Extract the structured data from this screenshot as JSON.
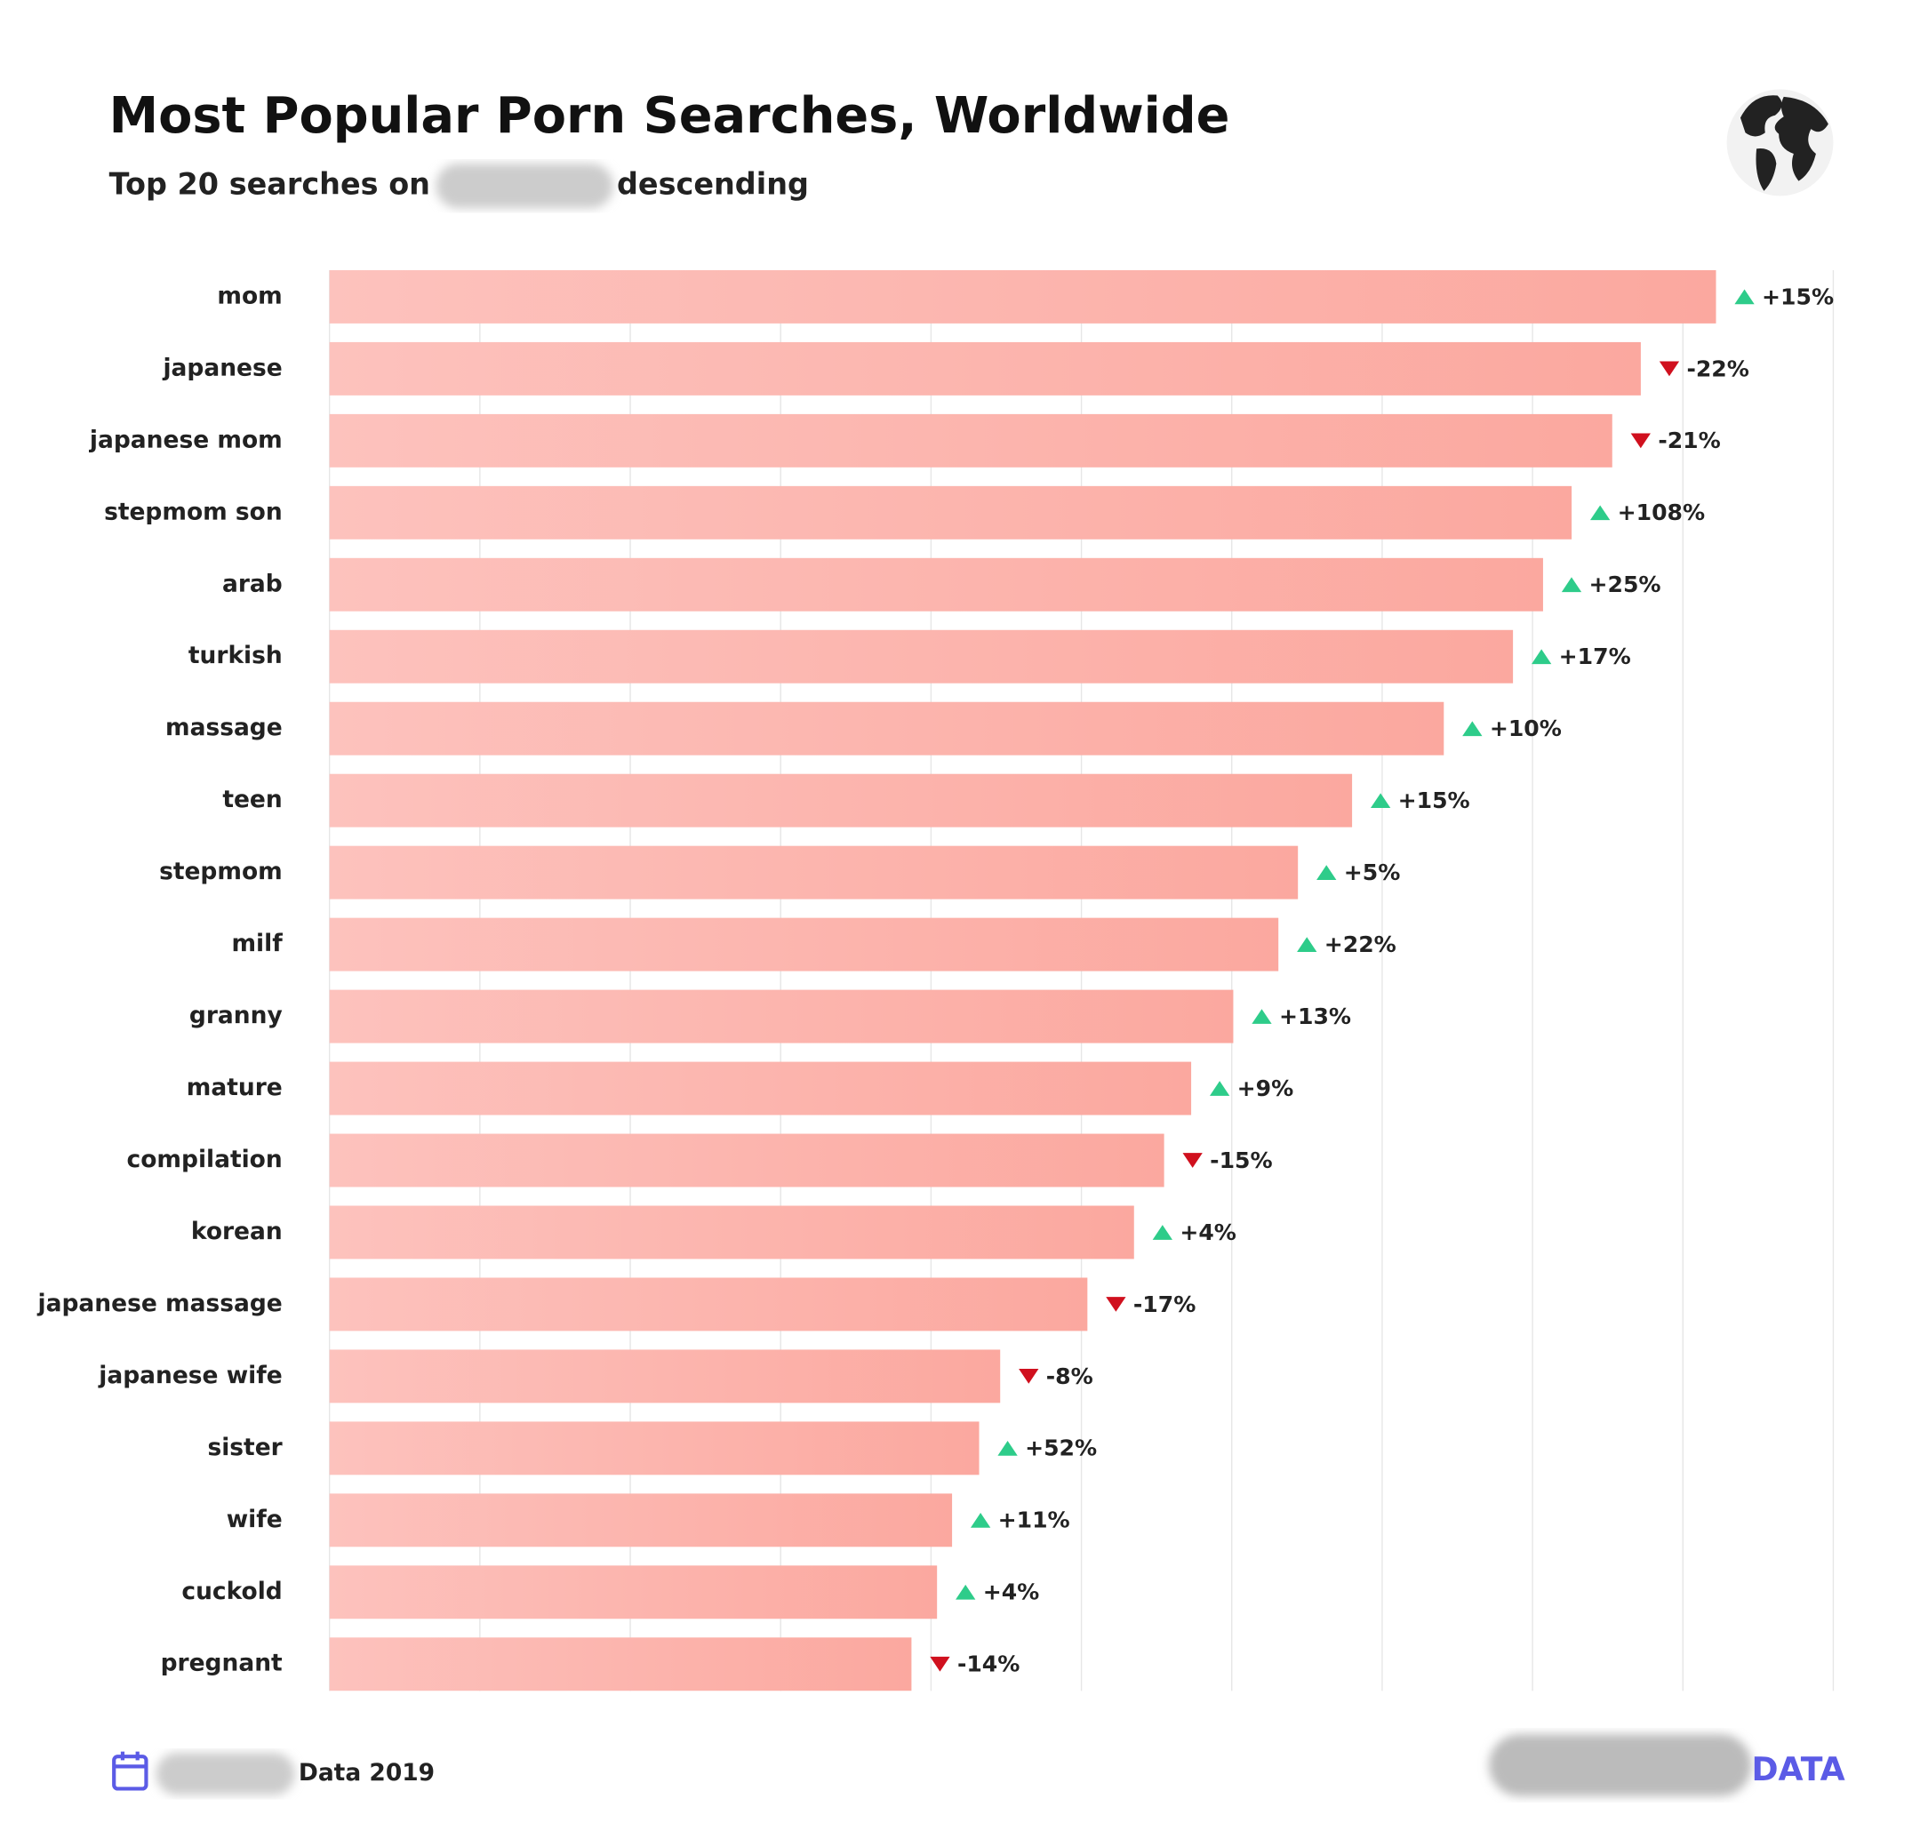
{
  "chart_data": {
    "type": "bar",
    "orientation": "horizontal",
    "title": "Most Popular Porn Searches, Worldwide",
    "subtitle": [
      "Top 20 searches on",
      "descending"
    ],
    "categories": [
      "mom",
      "japanese",
      "japanese mom",
      "stepmom son",
      "arab",
      "turkish",
      "massage",
      "teen",
      "stepmom",
      "milf",
      "granny",
      "mature",
      "compilation",
      "korean",
      "japanese massage",
      "japanese wife",
      "sister",
      "wife",
      "cuckold",
      "pregnant"
    ],
    "values": [
      92.2,
      87.2,
      85.3,
      82.6,
      80.7,
      78.7,
      74.1,
      68.0,
      64.4,
      63.1,
      60.1,
      57.3,
      55.5,
      53.5,
      50.4,
      44.6,
      43.2,
      41.4,
      40.4,
      38.7
    ],
    "changes": [
      15,
      -22,
      -21,
      108,
      25,
      17,
      10,
      15,
      5,
      22,
      13,
      9,
      -15,
      4,
      -17,
      -8,
      52,
      11,
      4,
      -14
    ],
    "change_labels": [
      "+15%",
      "-22%",
      "-21%",
      "+108%",
      "+25%",
      "+17%",
      "+10%",
      "+15%",
      "+5%",
      "+22%",
      "+13%",
      "+9%",
      "-15%",
      "+4%",
      "-17%",
      "-8%",
      "+52%",
      "+11%",
      "+4%",
      "-14%"
    ],
    "color": [
      "#fdc2bd",
      "#fba89f"
    ],
    "up_color": "#2ecc8a",
    "down_color": "#d0101e",
    "xlim": [
      0,
      100
    ],
    "xticks": [
      0,
      10,
      20,
      30,
      40,
      50,
      60,
      70,
      80,
      90,
      100
    ],
    "grid": true
  },
  "footer": {
    "source": "Data 2019",
    "brand": "DATA"
  }
}
